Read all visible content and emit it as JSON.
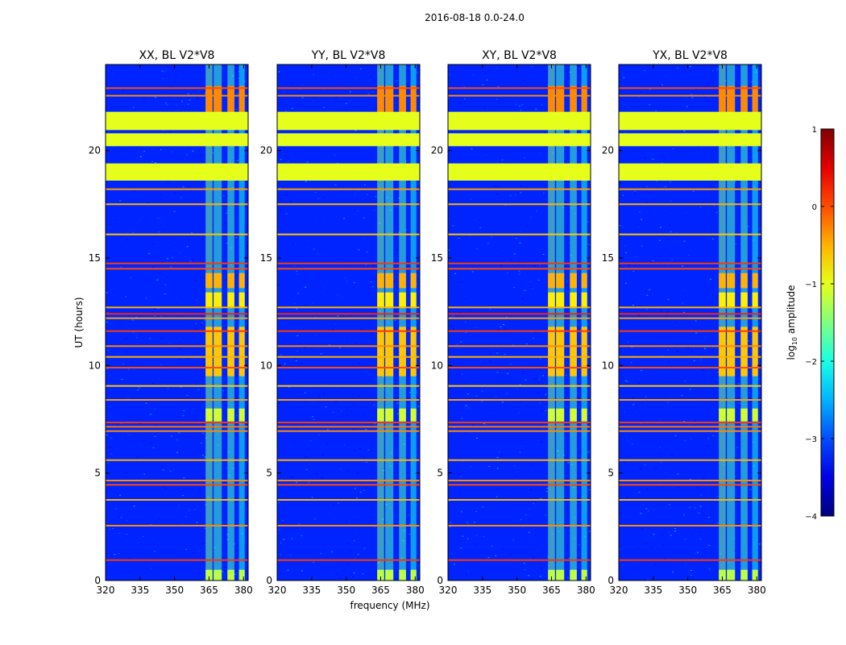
{
  "figure": {
    "suptitle": "2016-08-18 0.0-24.0",
    "xlabel": "frequency (MHz)",
    "ylabel": "UT (hours)"
  },
  "chart_data": {
    "type": "heatmap",
    "title": "2016-08-18 0.0-24.0",
    "xlabel": "frequency (MHz)",
    "ylabel": "UT (hours)",
    "xlim": [
      320,
      382
    ],
    "ylim": [
      0,
      24
    ],
    "xticks": [
      320,
      335,
      350,
      365,
      380
    ],
    "yticks": [
      0,
      5,
      10,
      15,
      20
    ],
    "panels": [
      {
        "title": "XX, BL V2*V8",
        "polarization": "XX"
      },
      {
        "title": "YY, BL V2*V8",
        "polarization": "YY"
      },
      {
        "title": "XY, BL V2*V8",
        "polarization": "XY"
      },
      {
        "title": "YX, BL V2*V8",
        "polarization": "YX"
      }
    ],
    "colorbar": {
      "label": "log10 amplitude",
      "label_prefix": "log",
      "label_subscript": "10",
      "label_suffix": " amplitude",
      "range": [
        -4,
        1
      ],
      "ticks": [
        1,
        0,
        -1,
        -2,
        -3,
        -4
      ],
      "tick_labels": [
        "1",
        "0",
        "−1",
        "−2",
        "−3",
        "−4"
      ],
      "colormap": "jet",
      "background_level": -3.2
    },
    "saturated_bands_ut": [
      {
        "start": 18.6,
        "end": 19.4,
        "level": -1.0
      },
      {
        "start": 20.2,
        "end": 20.8,
        "level": -1.0
      },
      {
        "start": 20.95,
        "end": 21.8,
        "level": -1.0
      }
    ],
    "hot_rows_ut": [
      {
        "t": 0.95,
        "level": 0.1
      },
      {
        "t": 2.55,
        "level": -0.3
      },
      {
        "t": 3.75,
        "level": -0.5
      },
      {
        "t": 4.45,
        "level": 0.0
      },
      {
        "t": 4.65,
        "level": -0.3
      },
      {
        "t": 5.6,
        "level": -0.5
      },
      {
        "t": 6.95,
        "level": -0.3
      },
      {
        "t": 7.15,
        "level": -0.2
      },
      {
        "t": 7.35,
        "level": 0.1
      },
      {
        "t": 8.4,
        "level": -0.4
      },
      {
        "t": 9.05,
        "level": -0.6
      },
      {
        "t": 9.9,
        "level": 0.0
      },
      {
        "t": 10.4,
        "level": -0.5
      },
      {
        "t": 10.9,
        "level": -0.3
      },
      {
        "t": 11.6,
        "level": 0.1
      },
      {
        "t": 12.2,
        "level": -0.4
      },
      {
        "t": 12.4,
        "level": 0.2
      },
      {
        "t": 12.7,
        "level": -0.5
      },
      {
        "t": 14.5,
        "level": 0.0
      },
      {
        "t": 14.75,
        "level": 0.1
      },
      {
        "t": 16.1,
        "level": -0.6
      },
      {
        "t": 17.5,
        "level": -0.5
      },
      {
        "t": 18.2,
        "level": -0.4
      },
      {
        "t": 22.55,
        "level": -0.3
      },
      {
        "t": 22.9,
        "level": 0.0
      }
    ],
    "rfi_channels_mhz": [
      {
        "start": 363.5,
        "end": 366.5,
        "level": -1.6
      },
      {
        "start": 367.0,
        "end": 370.5,
        "level": -1.8
      },
      {
        "start": 373.0,
        "end": 376.0,
        "level": -1.8
      },
      {
        "start": 378.0,
        "end": 380.5,
        "level": -2.0
      }
    ],
    "rfi_blocks": [
      {
        "ut_start": 13.6,
        "ut_end": 14.3,
        "level": -0.5
      },
      {
        "ut_start": 12.7,
        "ut_end": 13.4,
        "level": -0.8
      },
      {
        "ut_start": 9.5,
        "ut_end": 11.8,
        "level": -0.6
      },
      {
        "ut_start": 7.4,
        "ut_end": 8.0,
        "level": -1.1
      },
      {
        "ut_start": 21.0,
        "ut_end": 23.0,
        "level": -0.3
      },
      {
        "ut_start": 0.0,
        "ut_end": 0.5,
        "level": -1.2
      }
    ]
  }
}
